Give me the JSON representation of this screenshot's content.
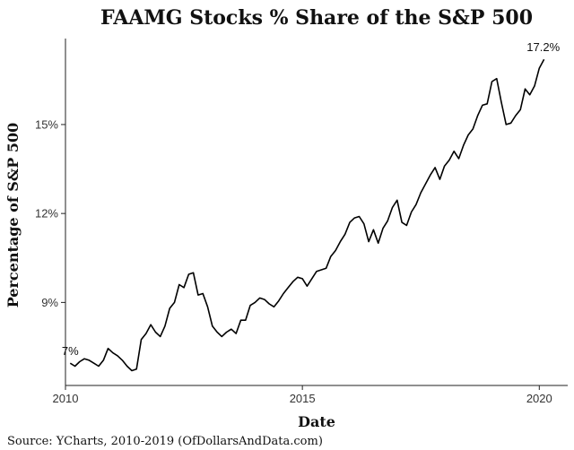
{
  "chart_data": {
    "type": "line",
    "title": "FAAMG Stocks % Share of the S&P 500",
    "xlabel": "Date",
    "ylabel": "Percentage of S&P 500",
    "xlim": [
      2010.0,
      2020.6
    ],
    "ylim": [
      6.2,
      17.9
    ],
    "grid": false,
    "x_ticks": [
      2010,
      2015,
      2020
    ],
    "x_tick_labels": [
      "2010",
      "2015",
      "2020"
    ],
    "y_ticks": [
      9,
      12,
      15
    ],
    "y_tick_labels": [
      "9%",
      "12%",
      "15%"
    ],
    "annotations": [
      {
        "text": "7%",
        "x": 2010.1,
        "y": 6.95
      },
      {
        "text": "17.2%",
        "x": 2020.0,
        "y": 17.2
      }
    ],
    "series": [
      {
        "name": "FAAMG share",
        "x": [
          2010.1,
          2010.2,
          2010.3,
          2010.4,
          2010.5,
          2010.6,
          2010.7,
          2010.8,
          2010.9,
          2011.0,
          2011.1,
          2011.2,
          2011.3,
          2011.4,
          2011.5,
          2011.6,
          2011.7,
          2011.8,
          2011.9,
          2012.0,
          2012.1,
          2012.2,
          2012.3,
          2012.4,
          2012.5,
          2012.6,
          2012.7,
          2012.8,
          2012.9,
          2013.0,
          2013.1,
          2013.2,
          2013.3,
          2013.4,
          2013.5,
          2013.6,
          2013.7,
          2013.8,
          2013.9,
          2014.0,
          2014.1,
          2014.2,
          2014.3,
          2014.4,
          2014.5,
          2014.6,
          2014.7,
          2014.8,
          2014.9,
          2015.0,
          2015.1,
          2015.2,
          2015.3,
          2015.4,
          2015.5,
          2015.6,
          2015.7,
          2015.8,
          2015.9,
          2016.0,
          2016.1,
          2016.2,
          2016.3,
          2016.4,
          2016.5,
          2016.6,
          2016.7,
          2016.8,
          2016.9,
          2017.0,
          2017.1,
          2017.2,
          2017.3,
          2017.4,
          2017.5,
          2017.6,
          2017.7,
          2017.8,
          2017.9,
          2018.0,
          2018.1,
          2018.2,
          2018.3,
          2018.4,
          2018.5,
          2018.6,
          2018.7,
          2018.8,
          2018.9,
          2019.0,
          2019.1,
          2019.2,
          2019.3,
          2019.4,
          2019.5,
          2019.6,
          2019.7,
          2019.8,
          2019.9,
          2020.0,
          2020.1
        ],
        "values": [
          6.95,
          6.85,
          7.0,
          7.1,
          7.05,
          6.95,
          6.85,
          7.05,
          7.45,
          7.3,
          7.2,
          7.05,
          6.85,
          6.7,
          6.75,
          7.75,
          7.95,
          8.25,
          8.0,
          7.85,
          8.2,
          8.8,
          9.0,
          9.6,
          9.5,
          9.95,
          10.0,
          9.25,
          9.3,
          8.85,
          8.2,
          8.0,
          7.85,
          8.0,
          8.1,
          7.95,
          8.4,
          8.4,
          8.9,
          9.0,
          9.15,
          9.1,
          8.95,
          8.85,
          9.05,
          9.3,
          9.5,
          9.7,
          9.85,
          9.8,
          9.55,
          9.8,
          10.05,
          10.1,
          10.15,
          10.55,
          10.75,
          11.05,
          11.3,
          11.7,
          11.85,
          11.9,
          11.65,
          11.05,
          11.45,
          11.0,
          11.5,
          11.75,
          12.2,
          12.45,
          11.7,
          11.6,
          12.05,
          12.3,
          12.7,
          13.0,
          13.3,
          13.55,
          13.15,
          13.6,
          13.8,
          14.1,
          13.85,
          14.3,
          14.65,
          14.85,
          15.3,
          15.65,
          15.7,
          16.45,
          16.55,
          15.75,
          15.0,
          15.05,
          15.3,
          15.5,
          16.2,
          16.0,
          16.3,
          16.9,
          17.2
        ]
      }
    ]
  },
  "source": "Source:  YCharts, 2010-2019 (OfDollarsAndData.com)"
}
